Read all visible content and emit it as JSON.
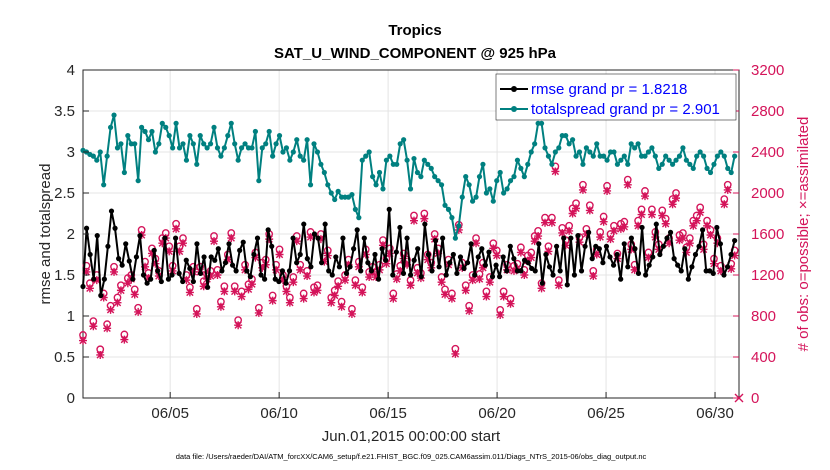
{
  "chart_data": {
    "type": "line",
    "title": "Tropics",
    "subtitle": "SAT_U_WIND_COMPONENT @ 925 hPa",
    "xlabel": "Jun.01,2015 00:00:00 start",
    "ylabel_left": "rmse and totalspread",
    "ylabel_right": "# of obs: o=possible; ×=assimilated",
    "footnote": "data file: /Users/raeder/DAI/ATM_forcXX/CAM6_setup/f.e21.FHIST_BGC.f09_025.CAM6assim.011/Diags_NTrS_2015-06/obs_diag_output.nc",
    "xlim": [
      1,
      31.1
    ],
    "ylim_left": [
      0,
      4
    ],
    "ylim_right": [
      0,
      3200
    ],
    "x_ticks": [
      5,
      10,
      15,
      20,
      25,
      30
    ],
    "x_tick_labels": [
      "06/05",
      "06/10",
      "06/15",
      "06/20",
      "06/25",
      "06/30"
    ],
    "y_left_ticks": [
      "0",
      "0.5",
      "1",
      "1.5",
      "2",
      "2.5",
      "3",
      "3.5",
      "4"
    ],
    "y_right_ticks": [
      "0",
      "400",
      "800",
      "1200",
      "1600",
      "2000",
      "2400",
      "2800",
      "3200"
    ],
    "colors": {
      "rmse": "#000000",
      "spread": "#008080",
      "obs": "#d4145a",
      "legend_text": "#0000ff"
    },
    "legend": [
      {
        "name": "rmse grand pr = 1.8218",
        "color": "#000000"
      },
      {
        "name": "totalspread grand pr = 2.901",
        "color": "#008080"
      }
    ],
    "series": [
      {
        "name": "rmse",
        "axis": "left",
        "values": [
          1.36,
          2.07,
          1.75,
          1.45,
          1.98,
          1.25,
          1.45,
          1.85,
          2.28,
          2.07,
          1.7,
          1.62,
          1.88,
          1.67,
          1.45,
          1.72,
          1.98,
          1.5,
          1.4,
          1.45,
          1.8,
          1.55,
          1.42,
          1.95,
          1.45,
          1.5,
          1.95,
          1.52,
          1.42,
          1.68,
          1.58,
          1.42,
          1.88,
          1.52,
          1.72,
          1.35,
          1.72,
          1.68,
          1.82,
          1.55,
          1.65,
          1.88,
          1.62,
          1.55,
          1.8,
          1.9,
          1.55,
          1.48,
          1.75,
          1.95,
          1.5,
          1.45,
          2.05,
          1.85,
          1.45,
          1.42,
          1.55,
          1.4,
          1.55,
          1.95,
          1.65,
          1.75,
          2.12,
          1.7,
          1.6,
          2.0,
          1.95,
          1.65,
          2.12,
          1.55,
          1.5,
          1.72,
          1.6,
          1.95,
          1.52,
          1.6,
          1.82,
          2.05,
          1.55,
          1.95,
          1.65,
          1.55,
          1.75,
          1.45,
          1.82,
          1.68,
          2.3,
          1.5,
          1.78,
          2.08,
          1.52,
          1.95,
          1.5,
          1.68,
          1.82,
          1.48,
          2.12,
          1.75,
          1.55,
          1.92,
          1.6,
          1.95,
          1.5,
          1.65,
          1.75,
          1.52,
          1.72,
          1.58,
          1.65,
          1.88,
          1.5,
          1.72,
          1.82,
          1.62,
          1.78,
          1.48,
          1.62,
          1.48,
          1.72,
          1.55,
          1.85,
          1.7,
          1.55,
          1.55,
          1.68,
          1.65,
          1.58,
          1.55,
          1.88,
          1.4,
          1.75,
          1.6,
          1.5,
          1.85,
          1.55,
          1.95,
          1.38,
          1.95,
          1.5,
          1.98,
          1.55,
          1.85,
          2.02,
          1.7,
          1.85,
          1.82,
          1.65,
          1.85,
          1.72,
          1.62,
          1.75,
          1.45,
          1.88,
          1.6,
          1.95,
          1.82,
          1.52,
          2.08,
          1.5,
          1.62,
          1.72,
          2.12,
          1.75,
          1.85,
          1.95,
          2.02,
          1.7,
          1.62,
          1.55,
          1.82,
          1.45,
          1.6,
          1.75,
          1.85,
          2.05,
          1.55,
          1.55,
          1.52,
          2.08,
          1.88,
          1.5,
          1.6,
          1.75,
          1.92
        ]
      },
      {
        "name": "totalspread",
        "axis": "left",
        "values": [
          3.02,
          3.0,
          2.97,
          2.95,
          2.9,
          3.0,
          2.6,
          2.95,
          3.3,
          3.45,
          3.05,
          3.1,
          2.75,
          3.2,
          3.1,
          3.1,
          2.65,
          3.3,
          3.25,
          3.15,
          3.25,
          3.0,
          3.1,
          3.35,
          3.3,
          3.2,
          3.05,
          3.35,
          3.05,
          3.1,
          2.9,
          3.2,
          3.1,
          2.85,
          3.2,
          3.1,
          3.05,
          3.1,
          3.3,
          3.05,
          2.95,
          3.05,
          3.2,
          3.35,
          3.1,
          2.9,
          3.05,
          3.1,
          3.05,
          3.05,
          3.25,
          2.65,
          3.05,
          3.1,
          3.25,
          2.95,
          3.1,
          3.2,
          3.0,
          3.05,
          2.9,
          3.0,
          3.15,
          2.95,
          2.9,
          3.15,
          2.6,
          3.1,
          3.0,
          2.85,
          2.75,
          2.6,
          2.5,
          2.42,
          2.52,
          2.45,
          2.45,
          2.45,
          2.48,
          2.3,
          2.2,
          2.9,
          2.95,
          3.0,
          2.7,
          2.6,
          2.75,
          2.55,
          2.9,
          2.95,
          2.85,
          2.85,
          3.1,
          3.15,
          2.9,
          2.55,
          2.92,
          2.75,
          2.7,
          2.9,
          2.85,
          2.8,
          2.7,
          2.65,
          2.6,
          2.35,
          2.3,
          2.2,
          1.95,
          2.1,
          2.45,
          2.7,
          2.6,
          2.4,
          2.45,
          2.7,
          2.85,
          2.5,
          2.55,
          2.4,
          2.65,
          2.75,
          2.5,
          2.55,
          2.65,
          2.7,
          2.9,
          2.8,
          2.7,
          2.85,
          3.0,
          3.1,
          3.35,
          3.35,
          3.05,
          2.95,
          2.85,
          3.0,
          3.05,
          3.2,
          3.2,
          3.1,
          3.15,
          2.95,
          3.0,
          2.85,
          3.05,
          3.0,
          2.95,
          3.1,
          2.95,
          2.95,
          2.9,
          3.0,
          3.0,
          2.85,
          2.9,
          2.95,
          2.85,
          3.1,
          3.05,
          3.1,
          2.95,
          2.95,
          3.0,
          3.05,
          2.95,
          2.8,
          2.85,
          2.95,
          2.9,
          2.85,
          2.9,
          2.95,
          3.05,
          2.9,
          2.85,
          2.8,
          2.95,
          3.0,
          2.95,
          2.8,
          2.75,
          2.85,
          2.95,
          3.0,
          2.95,
          2.8,
          2.75,
          2.95
        ]
      },
      {
        "name": "obs_possible",
        "axis": "right",
        "values": [
          615,
          1290,
          1120,
          750,
          1200,
          475,
          1020,
          720,
          900,
          1280,
          980,
          1100,
          620,
          1170,
          1200,
          1060,
          880,
          1640,
          1330,
          1220,
          1460,
          1360,
          1240,
          1560,
          1610,
          1480,
          1290,
          1700,
          1480,
          1560,
          1200,
          1080,
          1280,
          870,
          1280,
          1140,
          1210,
          1240,
          1580,
          1250,
          940,
          1090,
          1400,
          1610,
          1090,
          760,
          1040,
          1300,
          1110,
          1160,
          1420,
          880,
          1320,
          1350,
          1600,
          1000,
          1300,
          1450,
          1200,
          1090,
          980,
          1180,
          1580,
          1300,
          1020,
          1240,
          1620,
          1080,
          1100,
          1600,
          1380,
          1440,
          980,
          1050,
          1140,
          940,
          1200,
          1350,
          870,
          1150,
          1330,
          1080,
          1450,
          1230,
          1280,
          1230,
          1300,
          1540,
          1360,
          1460,
          1020,
          1210,
          1290,
          1410,
          1350,
          1150,
          1780,
          1270,
          1220,
          1800,
          1400,
          1320,
          1600,
          1460,
          1180,
          1060,
          1350,
          1020,
          480,
          1690,
          1320,
          1100,
          900,
          1200,
          1560,
          1210,
          1320,
          1040,
          1180,
          1510,
          1440,
          860,
          1040,
          1300,
          970,
          1290,
          1310,
          1470,
          1250,
          1390,
          1420,
          1580,
          1630,
          1120,
          1760,
          1480,
          1760,
          2260,
          1150,
          1660,
          1540,
          1680,
          1850,
          1900,
          1570,
          2080,
          1650,
          1880,
          1240,
          1450,
          1620,
          1770,
          2070,
          1600,
          1680,
          1410,
          1700,
          1720,
          2130,
          1500,
          1300,
          1730,
          1840,
          2020,
          1420,
          1840,
          1620,
          1500,
          1830,
          1750,
          1560,
          1940,
          2000,
          1590,
          1610,
          1470,
          1560,
          1730,
          1780,
          1860,
          1500,
          1730,
          1640,
          1360,
          1560,
          1290,
          1940,
          2080,
          1310,
          1440
        ]
      },
      {
        "name": "obs_assimilated",
        "axis": "right",
        "values": [
          560,
          1230,
          1070,
          700,
          1150,
          420,
          980,
          680,
          860,
          1230,
          930,
          1050,
          570,
          1120,
          1160,
          1010,
          840,
          1590,
          1280,
          1170,
          1410,
          1310,
          1190,
          1510,
          1560,
          1430,
          1240,
          1650,
          1430,
          1510,
          1150,
          1030,
          1230,
          820,
          1230,
          1090,
          1160,
          1190,
          1530,
          1200,
          890,
          1040,
          1350,
          1560,
          1040,
          710,
          990,
          1250,
          1060,
          1110,
          1370,
          830,
          1270,
          1300,
          1550,
          950,
          1250,
          1400,
          1150,
          1040,
          930,
          1130,
          1530,
          1250,
          970,
          1190,
          1570,
          1030,
          1050,
          1550,
          1330,
          1390,
          930,
          1000,
          1090,
          890,
          1150,
          1300,
          820,
          1100,
          1280,
          1030,
          1400,
          1180,
          1230,
          1180,
          1250,
          1490,
          1310,
          1410,
          970,
          1160,
          1240,
          1360,
          1300,
          1100,
          1730,
          1220,
          1170,
          1750,
          1350,
          1270,
          1550,
          1410,
          1130,
          1010,
          1300,
          970,
          430,
          1640,
          1270,
          1050,
          850,
          1150,
          1510,
          1160,
          1270,
          990,
          1130,
          1460,
          1390,
          810,
          990,
          1250,
          920,
          1240,
          1260,
          1420,
          1200,
          1340,
          1370,
          1530,
          1580,
          1070,
          1710,
          1430,
          1710,
          2210,
          1100,
          1610,
          1490,
          1630,
          1800,
          1850,
          1520,
          2030,
          1600,
          1830,
          1190,
          1400,
          1570,
          1720,
          2020,
          1550,
          1630,
          1360,
          1650,
          1670,
          2080,
          1450,
          1250,
          1680,
          1790,
          1970,
          1370,
          1790,
          1570,
          1450,
          1780,
          1700,
          1510,
          1890,
          1950,
          1540,
          1560,
          1420,
          1510,
          1680,
          1730,
          1810,
          1450,
          1680,
          1590,
          1310,
          1510,
          1240,
          1890,
          2030,
          1260,
          1390
        ]
      }
    ]
  }
}
